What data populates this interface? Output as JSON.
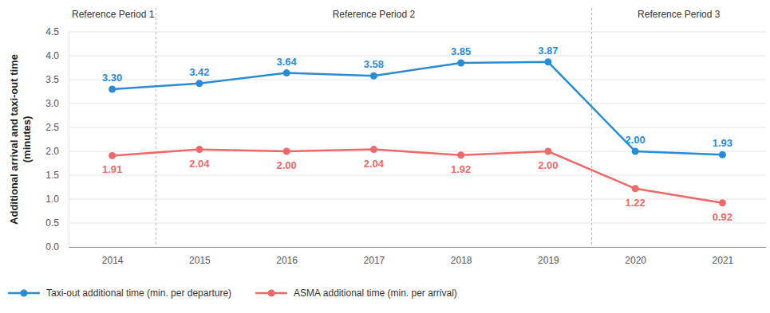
{
  "chart_data": {
    "type": "line",
    "ylabel": [
      "Additional arrival and taxi-out time",
      "(minutes)"
    ],
    "categories": [
      "2014",
      "2015",
      "2016",
      "2017",
      "2018",
      "2019",
      "2020",
      "2021"
    ],
    "series": [
      {
        "name": "Taxi-out additional time (min. per departure)",
        "color": "#2b8cd6",
        "marker": "circle",
        "line_style": "solid",
        "values": [
          3.3,
          3.42,
          3.64,
          3.58,
          3.85,
          3.87,
          2.0,
          1.93
        ],
        "value_labels": [
          "3.30",
          "3.42",
          "3.64",
          "3.58",
          "3.85",
          "3.87",
          "2.00",
          "1.93"
        ]
      },
      {
        "name": "ASMA additional time (min. per arrival)",
        "color": "#ee6a6a",
        "marker": "circle",
        "line_style": "solid",
        "values": [
          1.91,
          2.04,
          2.0,
          2.04,
          1.92,
          2.0,
          1.22,
          0.92
        ],
        "value_labels": [
          "1.91",
          "2.04",
          "2.00",
          "2.04",
          "1.92",
          "2.00",
          "1.22",
          "0.92"
        ]
      }
    ],
    "periods": [
      {
        "label": "Reference Period 1",
        "categories": [
          "2014"
        ]
      },
      {
        "label": "Reference Period 2",
        "categories": [
          "2015",
          "2016",
          "2017",
          "2018",
          "2019"
        ]
      },
      {
        "label": "Reference Period 3",
        "categories": [
          "2020",
          "2021"
        ]
      }
    ],
    "ylim": [
      0,
      4.5
    ],
    "yticks": [
      {
        "value": 0,
        "label": "0.0"
      },
      0.5,
      {
        "value": 1,
        "label": "1.0"
      },
      1.5,
      {
        "value": 2,
        "label": "2.0"
      },
      2.5,
      {
        "value": 3,
        "label": "3.0"
      },
      3.5,
      {
        "value": 4,
        "label": "4.0"
      },
      4.5
    ],
    "grid": true,
    "data_labels": true,
    "legend": "bottom"
  }
}
